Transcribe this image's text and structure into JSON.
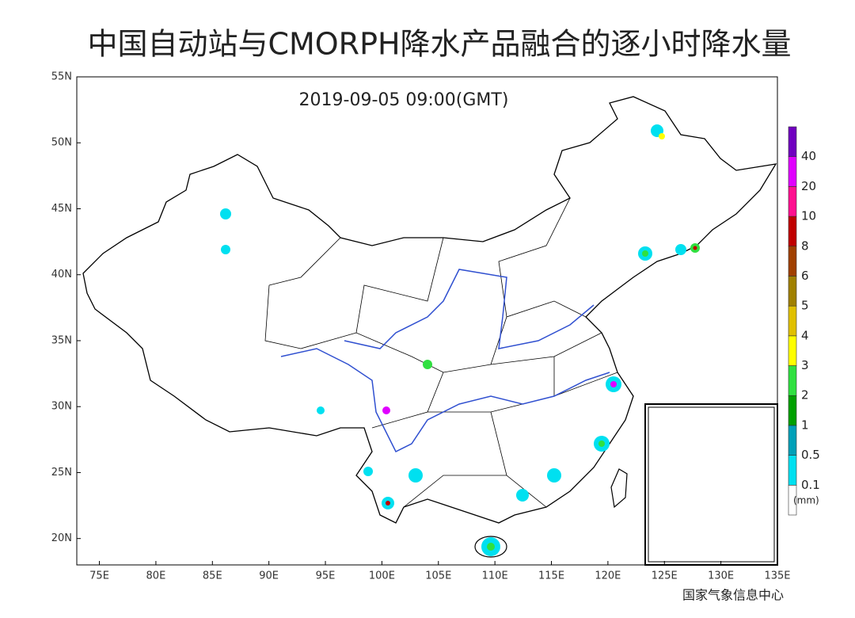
{
  "title": "中国自动站与CMORPH降水产品融合的逐小时降水量",
  "timestamp": "2019-09-05 09:00(GMT)",
  "map": {
    "xlim": [
      73,
      135
    ],
    "ylim": [
      18,
      55
    ],
    "xticks": [
      {
        "value": 75,
        "label": "75E"
      },
      {
        "value": 80,
        "label": "80E"
      },
      {
        "value": 85,
        "label": "85E"
      },
      {
        "value": 90,
        "label": "90E"
      },
      {
        "value": 95,
        "label": "95E"
      },
      {
        "value": 100,
        "label": "100E"
      },
      {
        "value": 105,
        "label": "105E"
      },
      {
        "value": 110,
        "label": "110E"
      },
      {
        "value": 115,
        "label": "115E"
      },
      {
        "value": 120,
        "label": "120E"
      },
      {
        "value": 125,
        "label": "125E"
      },
      {
        "value": 130,
        "label": "130E"
      },
      {
        "value": 135,
        "label": "135E"
      }
    ],
    "yticks": [
      {
        "value": 20,
        "label": "20N"
      },
      {
        "value": 25,
        "label": "25N"
      },
      {
        "value": 30,
        "label": "30N"
      },
      {
        "value": 35,
        "label": "35N"
      },
      {
        "value": 40,
        "label": "40N"
      },
      {
        "value": 45,
        "label": "45N"
      },
      {
        "value": 50,
        "label": "50N"
      },
      {
        "value": 55,
        "label": "55N"
      }
    ]
  },
  "legend": {
    "levels": [
      0.1,
      0.5,
      1,
      2,
      3,
      4,
      5,
      6,
      8,
      10,
      20,
      40
    ],
    "colors": [
      "#ffffff",
      "#00e0f0",
      "#00a0b8",
      "#00a000",
      "#30e040",
      "#ffff00",
      "#e0c000",
      "#a08000",
      "#a04000",
      "#c00000",
      "#ff1090",
      "#e000ff",
      "#7000c0"
    ],
    "unit": "(mm)"
  },
  "source": "国家气象信息中心"
}
